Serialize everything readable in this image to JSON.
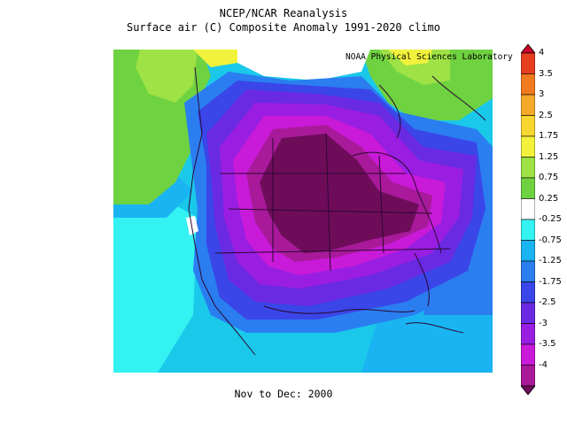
{
  "title": {
    "line1": "NCEP/NCAR Reanalysis",
    "line2": "Surface air (C) Composite Anomaly 1991-2020 climo"
  },
  "credit": "NOAA Physical Sciences Laboratory",
  "caption": "Nov to Dec: 2000",
  "colorbar": {
    "labels": [
      "4",
      "3.5",
      "3",
      "2.5",
      "1.75",
      "1.25",
      "0.75",
      "0.25",
      "-0.25",
      "-0.75",
      "-1.25",
      "-1.75",
      "-2.5",
      "-3",
      "-3.5",
      "-4"
    ],
    "colors": [
      "#c8002c",
      "#e63e1e",
      "#f27a20",
      "#f6a928",
      "#f8d630",
      "#f2f23c",
      "#9ee245",
      "#6fd240",
      "#ffffff",
      "#34f2f2",
      "#1ab4f2",
      "#2a7ef0",
      "#3a46e8",
      "#6a2ae2",
      "#9a1ee2",
      "#c81ad8",
      "#a81a9a",
      "#6e0c5a"
    ]
  }
}
